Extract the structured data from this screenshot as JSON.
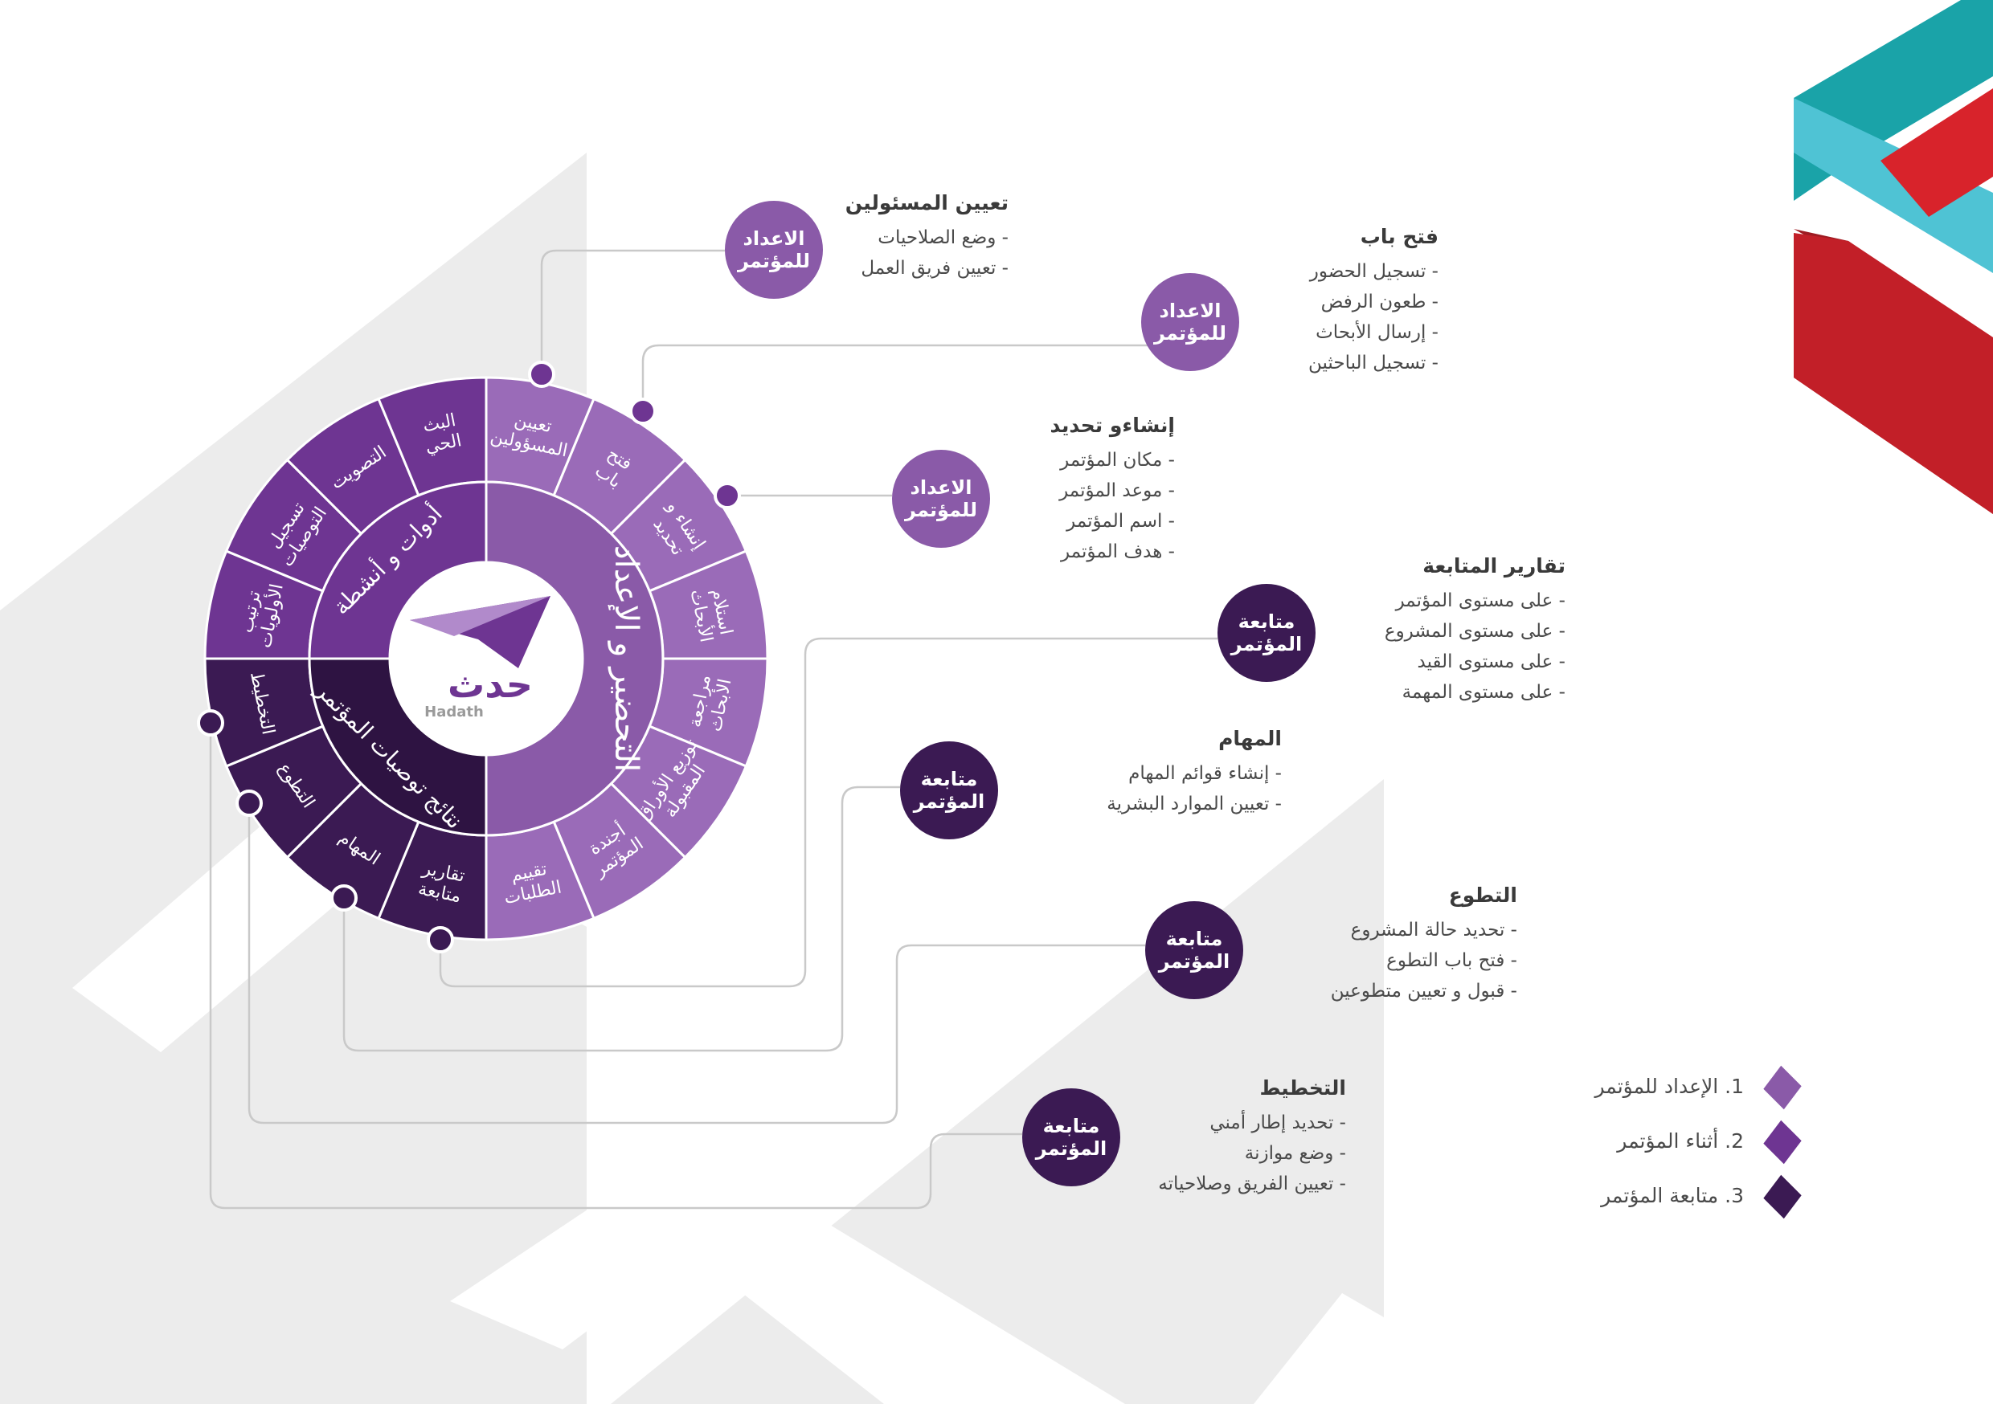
{
  "colors": {
    "prep": "#8a5aa8",
    "prep_light": "#9a6bb8",
    "during": "#6e3592",
    "follow": "#3b1a53",
    "follow_ring": "#2e1342",
    "line": "#c9c9c9",
    "bg_shape": "#ececec",
    "teal": "#1aa3a8",
    "red": "#c8202a"
  },
  "wheel": {
    "logo": {
      "name_ar": "حدث",
      "name_en": "Hadath"
    },
    "inner": {
      "prep": "التحضير و الإعداد",
      "tools": "أدوات و أنشطة",
      "results": "نتائج توصيات المؤتمر"
    },
    "outer": [
      {
        "label": "تعيين المسؤولين",
        "group": "prep"
      },
      {
        "label": "فتح باب",
        "group": "prep"
      },
      {
        "label": "إنشاء و تحديد",
        "group": "prep"
      },
      {
        "label": "استلام الأبحاث",
        "group": "prep"
      },
      {
        "label": "مراجعة الأبحاث",
        "group": "prep"
      },
      {
        "label": "توزيع الأوراق المقبولة",
        "group": "prep"
      },
      {
        "label": "أجندة المؤتمر",
        "group": "prep"
      },
      {
        "label": "تقييم الطلبات",
        "group": "prep"
      },
      {
        "label": "تقارير متابعة",
        "group": "follow"
      },
      {
        "label": "المهام",
        "group": "follow"
      },
      {
        "label": "التطوع",
        "group": "follow"
      },
      {
        "label": "التخطيط",
        "group": "follow"
      },
      {
        "label": "ترتيب الأولويات",
        "group": "during"
      },
      {
        "label": "تسجيل التوصيات",
        "group": "during"
      },
      {
        "label": "التصويت",
        "group": "during"
      },
      {
        "label": "البث الحي",
        "group": "during"
      }
    ]
  },
  "callouts": [
    {
      "id": "assign-officials",
      "badge": "الاعداد\nللمؤتمر",
      "badge_type": "p1",
      "title": "تعيين المسئولين",
      "items": [
        "وضع الصلاحيات",
        "تعيين فريق العمل"
      ]
    },
    {
      "id": "open-door",
      "badge": "الاعداد\nللمؤتمر",
      "badge_type": "p1",
      "title": "فتح باب",
      "items": [
        "تسجيل الحضور",
        "طعون الرفض",
        "إرسال الأبحاث",
        "تسجيل الباحثين"
      ]
    },
    {
      "id": "create-define",
      "badge": "الاعداد\nللمؤتمر",
      "badge_type": "p1",
      "title": "إنشاءو تحديد",
      "items": [
        "مكان المؤتمر",
        "موعد المؤتمر",
        "اسم المؤتمر",
        "هدف المؤتمر"
      ]
    },
    {
      "id": "follow-reports",
      "badge": "متابعة\nالمؤتمر",
      "badge_type": "p3",
      "title": "تقارير المتابعة",
      "items": [
        "على مستوى المؤتمر",
        "على مستوى المشروع",
        "على مستوى القيد",
        "على مستوى المهمة"
      ]
    },
    {
      "id": "tasks",
      "badge": "متابعة\nالمؤتمر",
      "badge_type": "p3",
      "title": "المهام",
      "items": [
        "إنشاء قوائم المهام",
        "تعيين الموارد البشرية"
      ]
    },
    {
      "id": "volunteering",
      "badge": "متابعة\nالمؤتمر",
      "badge_type": "p3",
      "title": "التطوع",
      "items": [
        "تحديد حالة المشروع",
        "فتح باب التطوع",
        "قبول و تعيين متطوعين"
      ]
    },
    {
      "id": "planning",
      "badge": "متابعة\nالمؤتمر",
      "badge_type": "p3",
      "title": "التخطيط",
      "items": [
        "تحديد إطار أمني",
        "وضع موازنة",
        "تعيين الفريق وصلاحياته"
      ]
    }
  ],
  "legend": [
    {
      "label": "1. الإعداد للمؤتمر",
      "color": "#8a5aa8"
    },
    {
      "label": "2. أثناء المؤتمر",
      "color": "#6e3592"
    },
    {
      "label": "3. متابعة المؤتمر",
      "color": "#3b1a53"
    }
  ]
}
